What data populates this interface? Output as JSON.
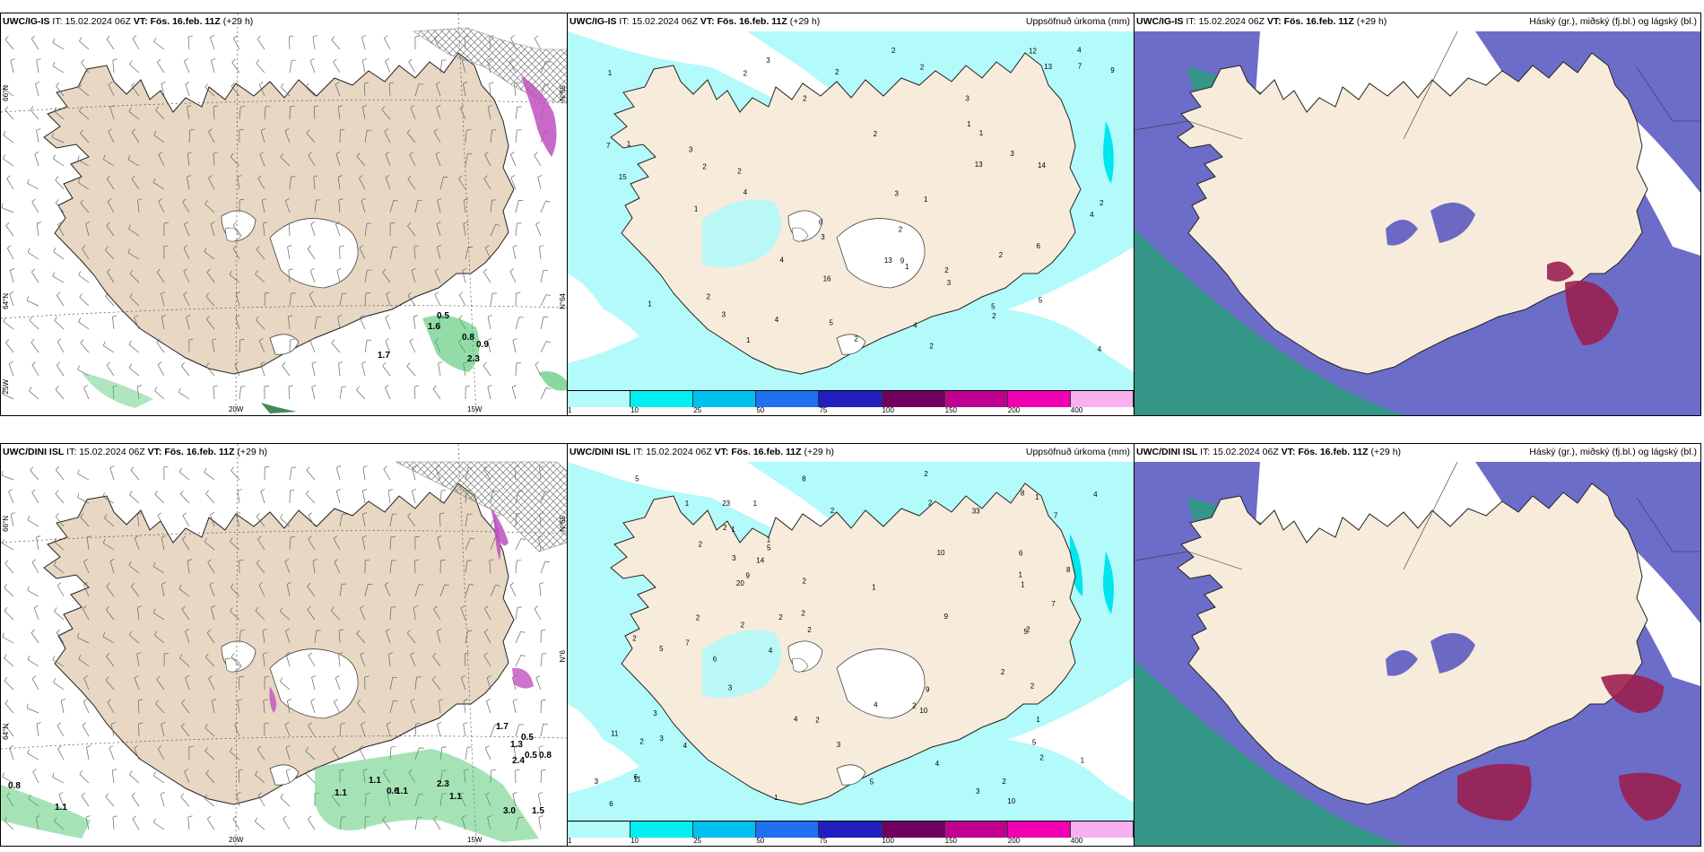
{
  "rows": [
    {
      "model": "UWC/IG-IS",
      "it_label": "IT:",
      "it_value": "15.02.2024 06Z",
      "vt_label": "VT:",
      "vt_value": "Fös. 16.feb. 11Z",
      "lead": "(+29 h)"
    },
    {
      "model": "UWC/DINI ISL",
      "it_label": "IT:",
      "it_value": "15.02.2024 06Z",
      "vt_label": "VT:",
      "vt_value": "Fös. 16.feb. 11Z",
      "lead": "(+29 h)"
    }
  ],
  "precip_title": "Uppsöfnuð úrkoma (mm)",
  "cloud_title": "Háský (gr.), miðský (fj.bl.) og lágský (bl.)",
  "colorbar": {
    "ticks": [
      "1",
      "10",
      "25",
      "50",
      "75",
      "100",
      "150",
      "200",
      "400"
    ],
    "colors": [
      "#b3fafa",
      "#00f0f0",
      "#00c0f0",
      "#2070f0",
      "#2020c0",
      "#700060",
      "#c00090",
      "#f000b0",
      "#f8b0f0"
    ]
  },
  "axis_labels": {
    "lat_66": "66°N",
    "lat_64": "64°N",
    "lat_25": "25W",
    "lon_20": "20W",
    "lon_15": "15W",
    "lat_66_right": "N°65",
    "lat_64_right": "N°64",
    "lat_right_bottom": "N°6"
  },
  "colors": {
    "land": "#f7ebdc",
    "land_wind": "#e7d7c3",
    "precip_light": "#b3fafa",
    "precip_mid": "#00e6ef",
    "high_cloud": "#2a9d7a",
    "mid_cloud": "#5252c0",
    "low_cloud": "#9b2050",
    "green_precip": "#38c060",
    "magenta_precip": "#c050c0"
  },
  "wind_precip_labels_top": [
    "0.5",
    "1.6",
    "0.8",
    "0.9",
    "2.3",
    "1.7"
  ],
  "wind_precip_labels_bottom": [
    "0.8",
    "1.1",
    "1.1",
    "0.6",
    "1.1",
    "1.1",
    "2.3",
    "1.1",
    "2.4",
    "3.0",
    "1.5",
    "0.5",
    "1.3",
    "1.7",
    "0.5",
    "0.8"
  ],
  "precip_numbers_top": [
    "2",
    "2",
    "2",
    "3",
    "3",
    "4",
    "4",
    "4",
    "3",
    "3",
    "1",
    "7",
    "6",
    "9",
    "13",
    "12",
    "15",
    "13",
    "2",
    "14",
    "5",
    "1",
    "1",
    "2",
    "1",
    "1",
    "1",
    "2",
    "2",
    "2",
    "3",
    "4",
    "3",
    "4",
    "3",
    "5",
    "2",
    "1",
    "2",
    "2",
    "2",
    "3",
    "9",
    "5",
    "2",
    "6",
    "13",
    "16",
    "2",
    "7",
    "4",
    "2",
    "2",
    "1",
    "1",
    "4"
  ],
  "precip_numbers_bottom": [
    "1",
    "1",
    "4",
    "2",
    "6",
    "5",
    "8",
    "10",
    "4",
    "3",
    "4",
    "10",
    "11",
    "4",
    "7",
    "6",
    "9",
    "9",
    "14",
    "33",
    "20",
    "23",
    "7",
    "3",
    "4",
    "3",
    "1",
    "2",
    "2",
    "1",
    "1",
    "2",
    "1",
    "6",
    "1",
    "1",
    "2",
    "1",
    "3",
    "5",
    "2",
    "2",
    "2",
    "1",
    "2",
    "2",
    "2",
    "2",
    "2",
    "2",
    "2",
    "2",
    "2",
    "3",
    "3",
    "2",
    "1",
    "5",
    "3",
    "4",
    "8",
    "5",
    "9",
    "11",
    "8",
    "5",
    "5",
    "6",
    "7",
    "10",
    "2",
    "2"
  ]
}
